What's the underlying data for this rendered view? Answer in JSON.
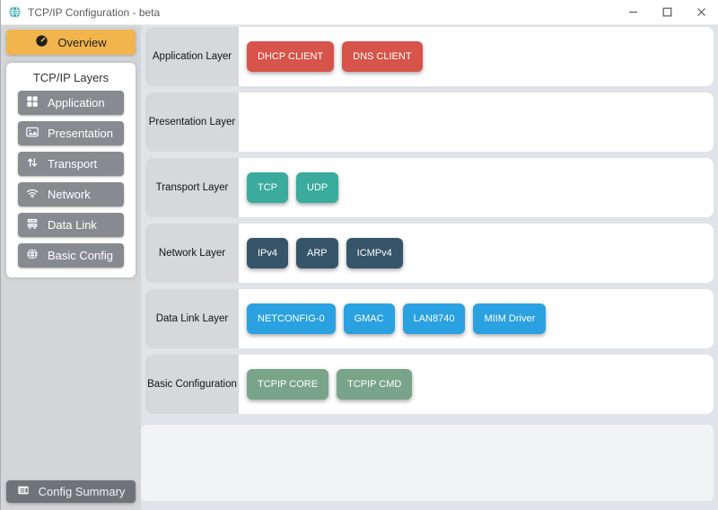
{
  "titlebar": {
    "title": "TCP/IP Configuration - beta",
    "app_icon": "network-globe-icon",
    "controls": {
      "minimize": "minimize",
      "maximize": "maximize",
      "close": "close"
    }
  },
  "sidebar": {
    "overview_label": "Overview",
    "overview_icon": "tachometer-icon",
    "layers_title": "TCP/IP Layers",
    "layer_buttons": [
      {
        "label": "Application",
        "icon": "grid-icon"
      },
      {
        "label": "Presentation",
        "icon": "image-icon"
      },
      {
        "label": "Transport",
        "icon": "arrows-vertical-icon"
      },
      {
        "label": "Network",
        "icon": "wifi-icon"
      },
      {
        "label": "Data Link",
        "icon": "server-icon"
      },
      {
        "label": "Basic Config",
        "icon": "globe-icon"
      }
    ],
    "config_summary_label": "Config Summary",
    "config_summary_icon": "list-icon"
  },
  "main": {
    "rows": [
      {
        "label": "Application Layer",
        "module_color": "#d6544a",
        "modules": [
          "DHCP CLIENT",
          "DNS CLIENT"
        ]
      },
      {
        "label": "Presentation Layer",
        "module_color": "#ffffff",
        "modules": []
      },
      {
        "label": "Transport Layer",
        "module_color": "#3aab9c",
        "modules": [
          "TCP",
          "UDP"
        ]
      },
      {
        "label": "Network Layer",
        "module_color": "#36546a",
        "modules": [
          "IPv4",
          "ARP",
          "ICMPv4"
        ]
      },
      {
        "label": "Data Link Layer",
        "module_color": "#2aa1e0",
        "modules": [
          "NETCONFIG-0",
          "GMAC",
          "LAN8740",
          "MIIM Driver"
        ]
      },
      {
        "label": "Basic Configuration",
        "module_color": "#7aa489",
        "modules": [
          "TCPIP CORE",
          "TCPIP CMD"
        ]
      }
    ]
  },
  "colors": {
    "overview_orange": "#f2b54d",
    "sidebar_button_gray": "#878b90",
    "config_summary_gray": "#6f7479",
    "titlebar_icon_teal": "#2aa3a9",
    "row_label_bg": "#d6d8db",
    "app_background": "#e0e3e7",
    "sidebar_background": "#d3d5d9"
  }
}
